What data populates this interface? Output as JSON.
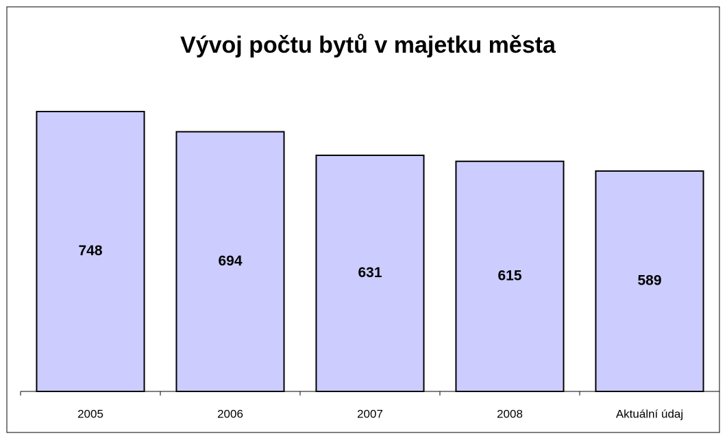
{
  "chart_data": {
    "type": "bar",
    "title": "Vývoj počtu bytů v majetku města",
    "categories": [
      "2005",
      "2006",
      "2007",
      "2008",
      "Aktuální údaj"
    ],
    "values": [
      748,
      694,
      631,
      615,
      589
    ],
    "color": "#ccccff"
  }
}
